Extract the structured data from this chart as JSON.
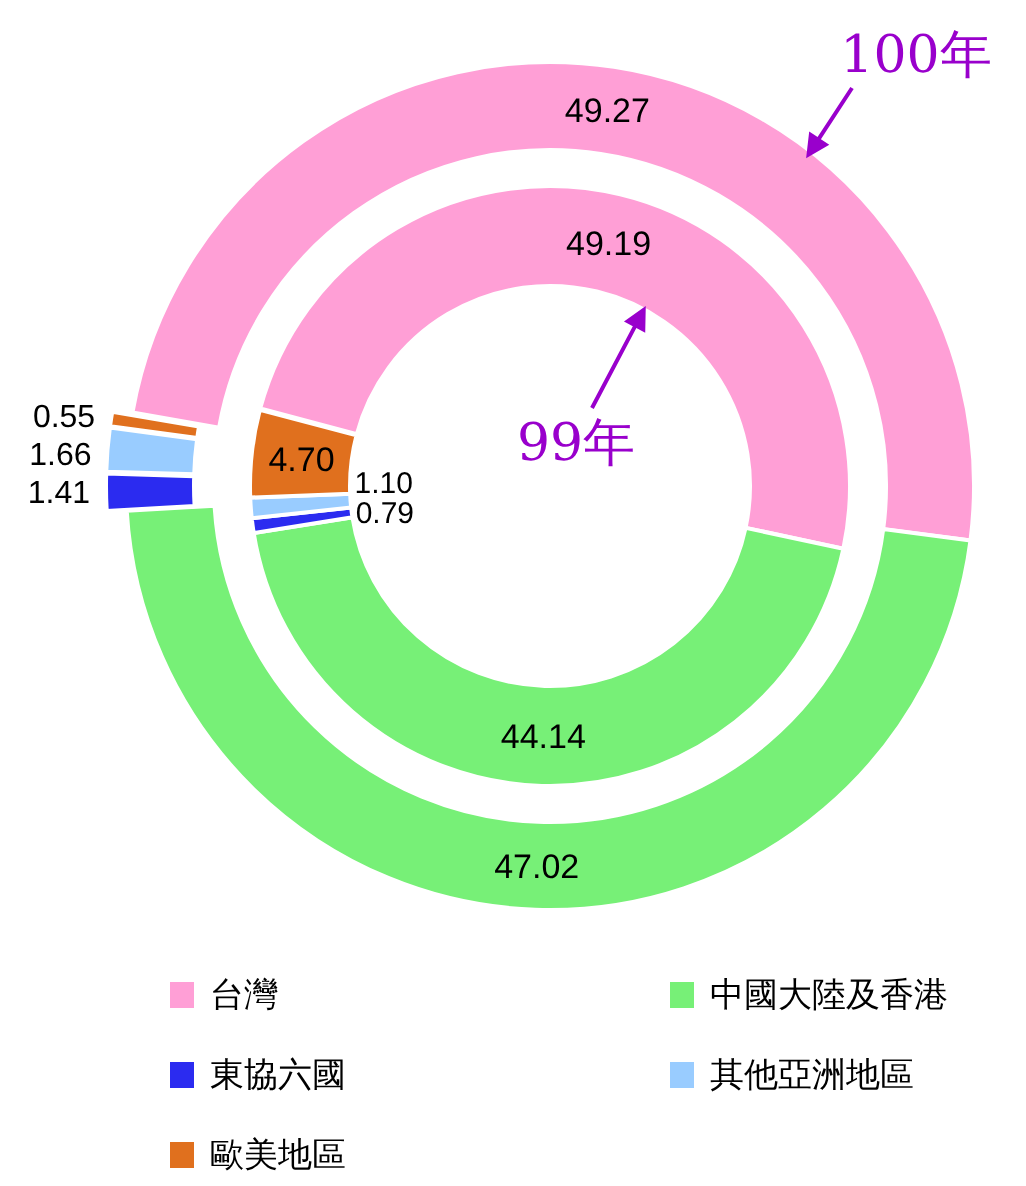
{
  "chart_data": {
    "type": "donut",
    "categories": [
      "台灣",
      "中國大陸及香港",
      "東協六國",
      "其他亞洲地區",
      "歐美地區"
    ],
    "colors": [
      "#ff9fd6",
      "#77f077",
      "#2b2bf0",
      "#99ccff",
      "#e0701e"
    ],
    "series": [
      {
        "name": "99年",
        "values": [
          49.19,
          44.14,
          0.79,
          1.1,
          4.7
        ],
        "value_labels": [
          "49.19",
          "44.14",
          "0.79",
          "1.10",
          "4.70"
        ]
      },
      {
        "name": "100年",
        "values": [
          49.27,
          47.02,
          1.41,
          1.66,
          0.55
        ],
        "value_labels": [
          "49.27",
          "47.02",
          "1.41",
          "1.66",
          "0.55"
        ]
      }
    ],
    "legend": "bottom"
  }
}
